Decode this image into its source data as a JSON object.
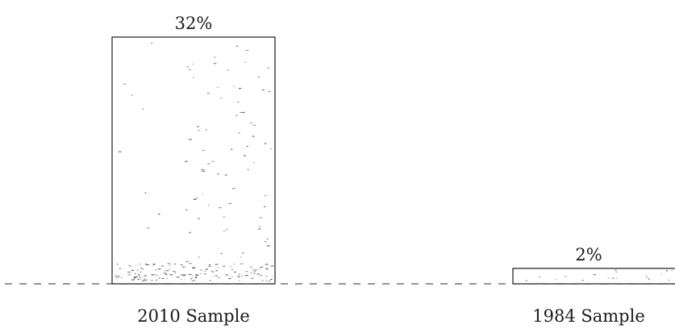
{
  "chart_data": {
    "type": "bar",
    "categories": [
      "2010 Sample",
      "1984 Sample"
    ],
    "values": [
      32,
      2
    ],
    "data_labels": [
      "32%",
      "2%"
    ],
    "title": "",
    "xlabel": "",
    "ylabel": "",
    "ylim": [
      0,
      32
    ],
    "unit": "%",
    "grid": false,
    "legend": "none",
    "colors": {
      "bar_fill": "#ffffff",
      "bar_stroke": "#1a1a1a",
      "texture": "#333333",
      "baseline": "#555555",
      "text": "#1a1a1a"
    }
  }
}
